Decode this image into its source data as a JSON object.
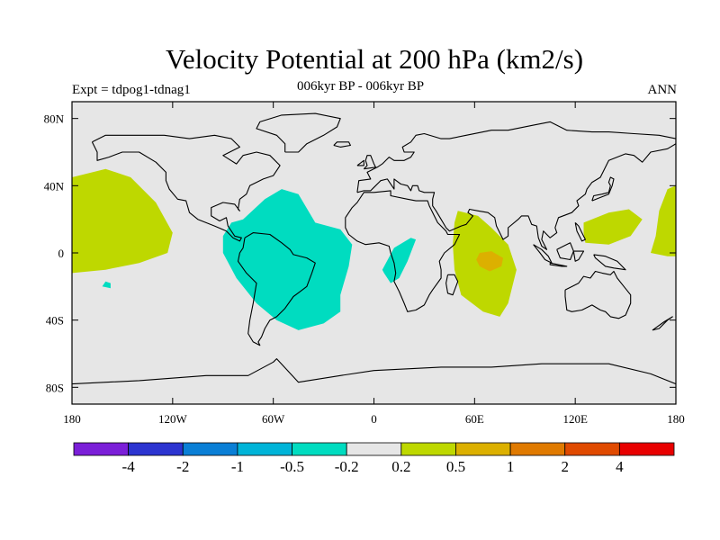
{
  "chart_data": {
    "type": "heatmap",
    "title": "Velocity Potential at 200 hPa (km2/s)",
    "subtitle": "006kyr BP - 006kyr BP",
    "left_label": "Expt = tdpog1-tdnag1",
    "right_label": "ANN",
    "x_ticks": [
      "180",
      "120W",
      "60W",
      "0",
      "60E",
      "120E",
      "180"
    ],
    "y_ticks": [
      "80N",
      "40N",
      "0",
      "40S",
      "80S"
    ],
    "xlim": [
      -180,
      180
    ],
    "ylim": [
      -90,
      90
    ],
    "colorbar": {
      "labels": [
        "-4",
        "-2",
        "-1",
        "-0.5",
        "-0.2",
        "0.2",
        "0.5",
        "1",
        "2",
        "4"
      ],
      "colors": [
        "#7b1fd8",
        "#2c34d0",
        "#0a7fd6",
        "#00b4d8",
        "#00dcc0",
        "#e6e6e6",
        "#bed800",
        "#dcb000",
        "#e07a00",
        "#e04a00",
        "#e80000"
      ]
    },
    "regions": [
      {
        "level": "0.2 to 0.5",
        "color": "#bed800",
        "description": "eastern Pacific",
        "polygon": [
          [
            -180,
            45
          ],
          [
            -160,
            50
          ],
          [
            -145,
            45
          ],
          [
            -130,
            30
          ],
          [
            -120,
            12
          ],
          [
            -123,
            0
          ],
          [
            -140,
            -6
          ],
          [
            -160,
            -10
          ],
          [
            -180,
            -12
          ]
        ]
      },
      {
        "level": "0.2 to 0.5",
        "color": "#bed800",
        "description": "Indian Ocean",
        "polygon": [
          [
            50,
            25
          ],
          [
            62,
            22
          ],
          [
            70,
            15
          ],
          [
            80,
            5
          ],
          [
            85,
            -10
          ],
          [
            80,
            -30
          ],
          [
            75,
            -38
          ],
          [
            65,
            -35
          ],
          [
            52,
            -25
          ],
          [
            48,
            -10
          ],
          [
            47,
            5
          ],
          [
            48,
            18
          ]
        ]
      },
      {
        "level": "0.2 to 0.5",
        "color": "#bed800",
        "description": "western Pacific",
        "polygon": [
          [
            125,
            18
          ],
          [
            140,
            24
          ],
          [
            152,
            26
          ],
          [
            160,
            20
          ],
          [
            153,
            10
          ],
          [
            140,
            5
          ],
          [
            126,
            6
          ],
          [
            125,
            12
          ]
        ]
      },
      {
        "level": "0.2 to 0.5",
        "color": "#bed800",
        "description": "date line",
        "polygon": [
          [
            180,
            40
          ],
          [
            175,
            38
          ],
          [
            170,
            25
          ],
          [
            168,
            10
          ],
          [
            165,
            0
          ],
          [
            175,
            -2
          ],
          [
            180,
            -2
          ]
        ]
      },
      {
        "level": "0.5 to 1",
        "color": "#dcb000",
        "description": "Indian Ocean core",
        "polygon": [
          [
            63,
            0
          ],
          [
            70,
            1
          ],
          [
            77,
            -3
          ],
          [
            76,
            -8
          ],
          [
            69,
            -11
          ],
          [
            63,
            -8
          ],
          [
            61,
            -4
          ]
        ]
      },
      {
        "level": "-0.5 to -0.2",
        "color": "#00dcc0",
        "description": "Atlantic / South America",
        "polygon": [
          [
            -78,
            20
          ],
          [
            -65,
            32
          ],
          [
            -55,
            38
          ],
          [
            -45,
            35
          ],
          [
            -35,
            18
          ],
          [
            -20,
            14
          ],
          [
            -13,
            5
          ],
          [
            -15,
            -8
          ],
          [
            -20,
            -25
          ],
          [
            -20,
            -35
          ],
          [
            -30,
            -42
          ],
          [
            -45,
            -46
          ],
          [
            -58,
            -40
          ],
          [
            -70,
            -30
          ],
          [
            -82,
            -15
          ],
          [
            -90,
            0
          ],
          [
            -90,
            10
          ],
          [
            -85,
            18
          ]
        ]
      },
      {
        "level": "-0.5 to -0.2",
        "color": "#00dcc0",
        "description": "west Africa",
        "polygon": [
          [
            5,
            -10
          ],
          [
            12,
            3
          ],
          [
            22,
            9
          ],
          [
            25,
            8
          ],
          [
            20,
            -5
          ],
          [
            15,
            -15
          ],
          [
            10,
            -18
          ],
          [
            6,
            -12
          ]
        ]
      },
      {
        "level": "-0.5 to -0.2",
        "color": "#00dcc0",
        "description": "south Pacific",
        "polygon": [
          [
            -160,
            -17
          ],
          [
            -157,
            -18
          ],
          [
            -157,
            -21
          ],
          [
            -162,
            -20
          ]
        ]
      }
    ]
  }
}
